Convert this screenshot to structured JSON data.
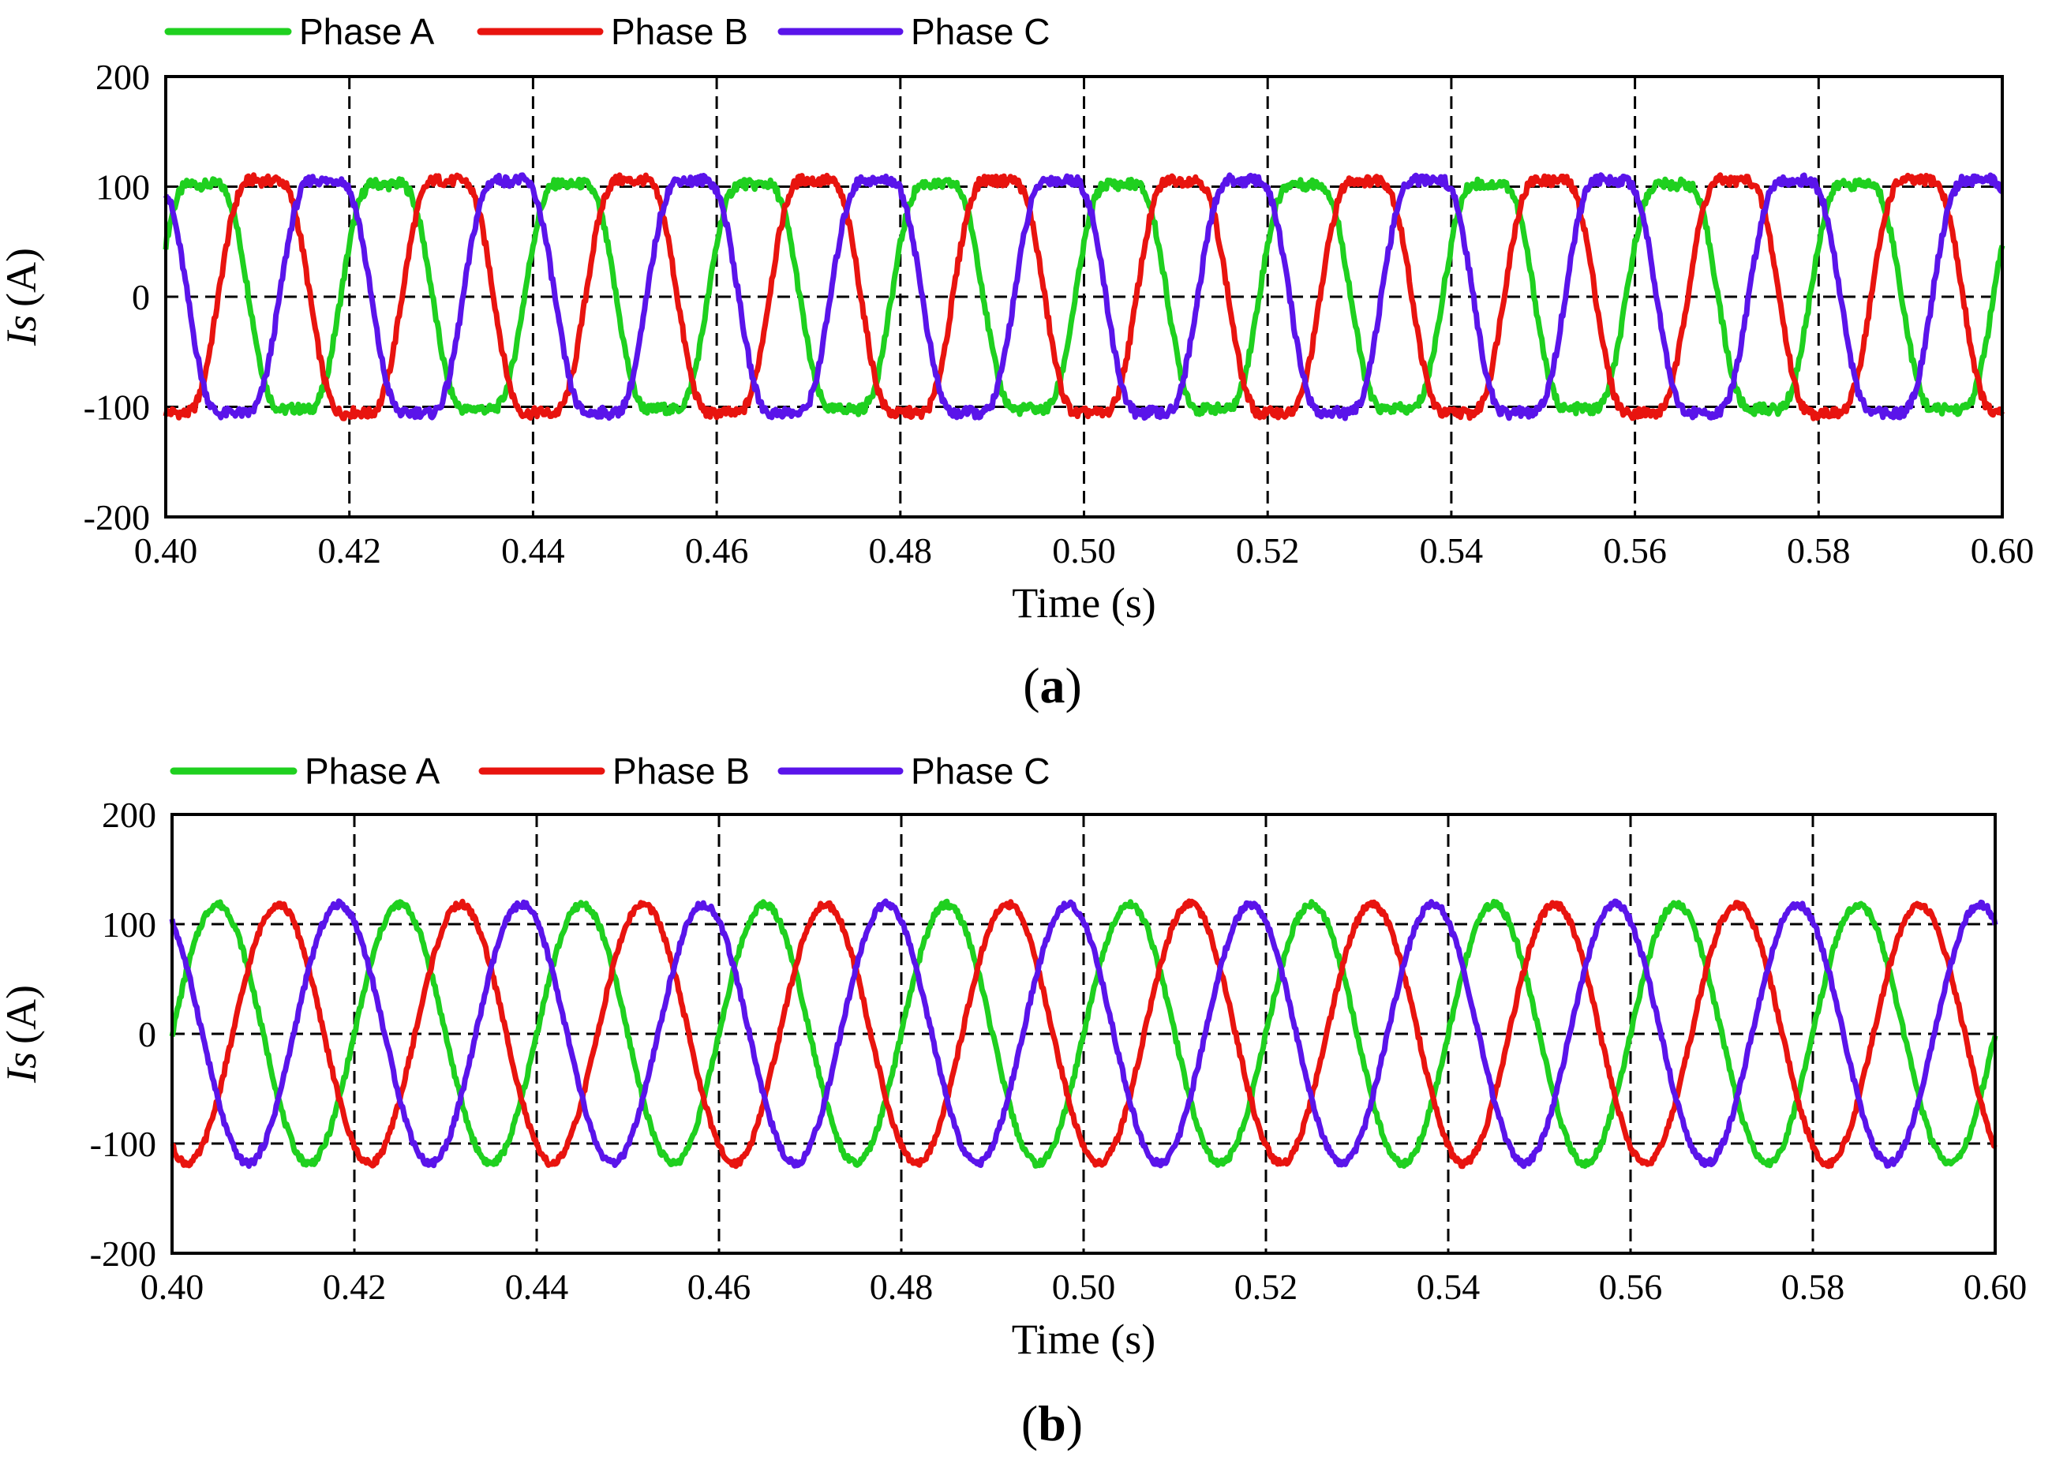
{
  "colors": {
    "phase_a": "#1fd01f",
    "phase_b": "#e8140f",
    "phase_c": "#5a14ea",
    "frame": "#000000",
    "grid": "#000000"
  },
  "chart_data": [
    {
      "panel_label": "(a)",
      "type": "line",
      "xlabel": "Time (s)",
      "ylabel_italic": "Is",
      "ylabel_unit": "(A)",
      "xlim": [
        0.4,
        0.6
      ],
      "ylim": [
        -200,
        200
      ],
      "xticks": [
        "0.40",
        "0.42",
        "0.44",
        "0.46",
        "0.48",
        "0.50",
        "0.52",
        "0.54",
        "0.56",
        "0.58",
        "0.60"
      ],
      "yticks": [
        "200",
        "100",
        "0",
        "-100",
        "-200"
      ],
      "grid": "dashed",
      "legend_position": "top",
      "waveform": "trapezoidal",
      "frequency_hz": 50,
      "series": [
        {
          "name": "Phase A",
          "color": "#1fd01f",
          "amplitude": 118,
          "phase_deg": 17
        },
        {
          "name": "Phase B",
          "color": "#e8140f",
          "amplitude": 122,
          "phase_deg": -103
        },
        {
          "name": "Phase C",
          "color": "#5a14ea",
          "amplitude": 122,
          "phase_deg": 137
        }
      ]
    },
    {
      "panel_label": "(b)",
      "type": "line",
      "xlabel": "Time (s)",
      "ylabel_italic": "Is",
      "ylabel_unit": "(A)",
      "xlim": [
        0.4,
        0.6
      ],
      "ylim": [
        -200,
        200
      ],
      "xticks": [
        "0.40",
        "0.42",
        "0.44",
        "0.46",
        "0.48",
        "0.50",
        "0.52",
        "0.54",
        "0.56",
        "0.58",
        "0.60"
      ],
      "yticks": [
        "200",
        "100",
        "0",
        "-100",
        "-200"
      ],
      "grid": "dashed",
      "legend_position": "top",
      "waveform": "sinusoidal",
      "frequency_hz": 50,
      "series": [
        {
          "name": "Phase A",
          "color": "#1fd01f",
          "amplitude": 118,
          "phase_deg": 0
        },
        {
          "name": "Phase B",
          "color": "#e8140f",
          "amplitude": 118,
          "phase_deg": -120
        },
        {
          "name": "Phase C",
          "color": "#5a14ea",
          "amplitude": 118,
          "phase_deg": 120
        }
      ]
    }
  ]
}
